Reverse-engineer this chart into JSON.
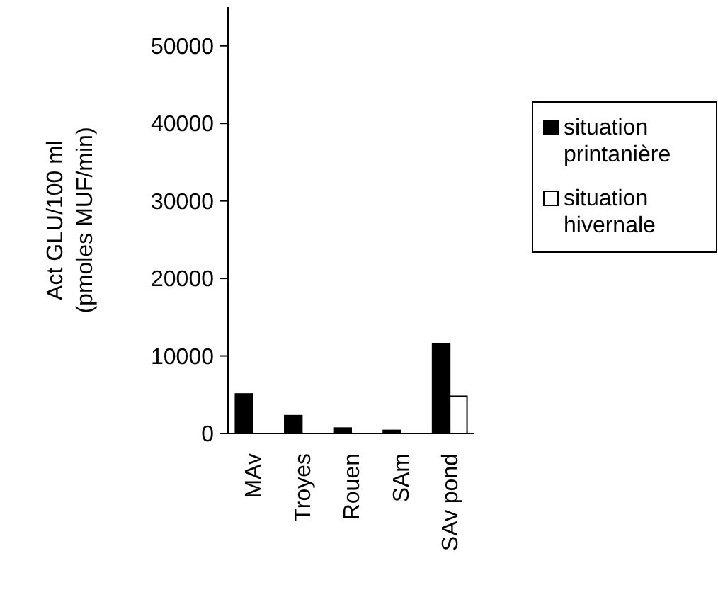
{
  "chart_data": {
    "type": "bar",
    "ylabel": "Act GLU/100 ml\n(pmoles MUF/min)",
    "categories": [
      "MAv",
      "Troyes",
      "Rouen",
      "SAm",
      "SAv pond"
    ],
    "series": [
      {
        "name": "situation printanière",
        "color": "#000000",
        "values": [
          5100,
          2300,
          700,
          400,
          11600
        ]
      },
      {
        "name": "situation hivernale",
        "color": "#ffffff",
        "values": [
          0,
          0,
          0,
          0,
          4800
        ]
      }
    ],
    "ylim": [
      0,
      55000
    ],
    "yticks": [
      0,
      10000,
      20000,
      30000,
      40000,
      50000
    ],
    "legend": "right",
    "grid": false
  }
}
